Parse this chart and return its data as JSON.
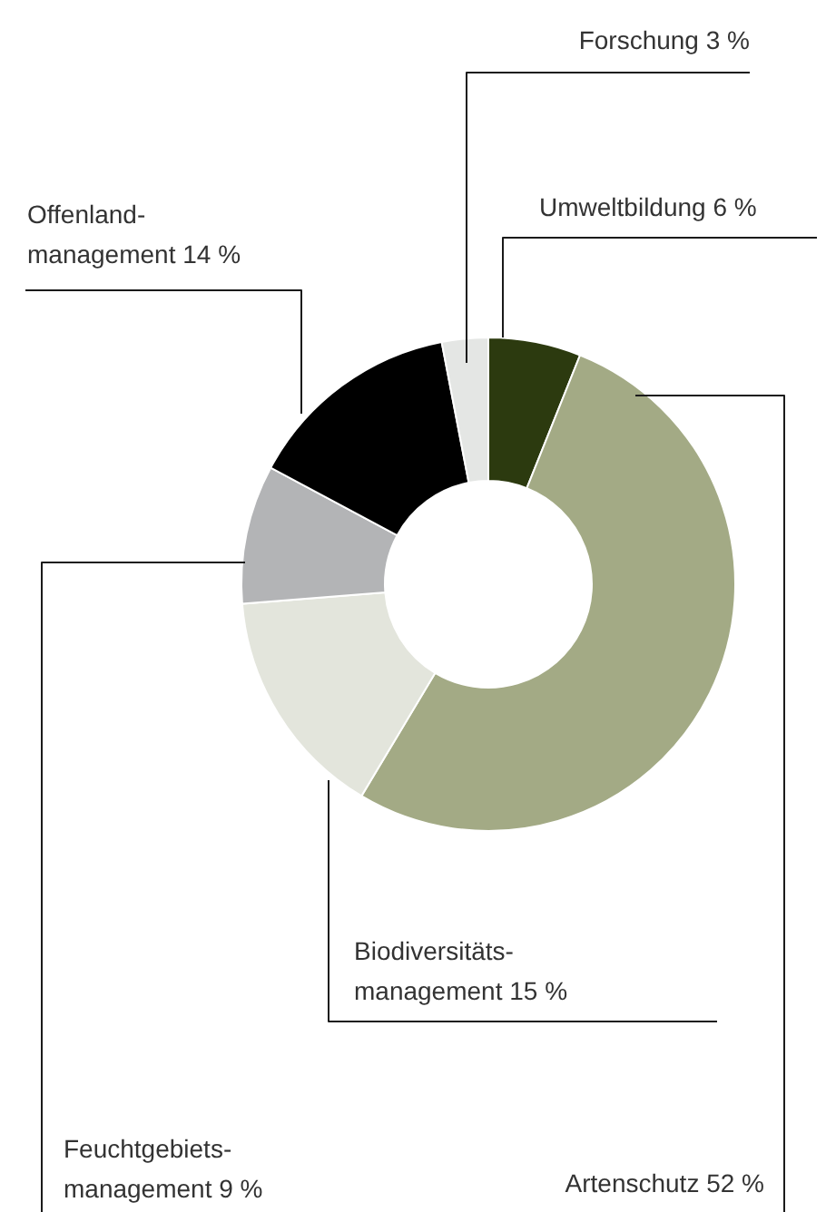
{
  "chart_data": {
    "type": "donut",
    "categories": [
      "Umweltbildung",
      "Artenschutz",
      "Biodiversitäts-\nmanagement",
      "Feuchtgebiets-\nmanagement",
      "Offenland-\nmanagement",
      "Forschung"
    ],
    "values": [
      6,
      52,
      15,
      9,
      14,
      3
    ],
    "value_labels": [
      "6 %",
      "52 %",
      "15 %",
      "9 %",
      "14 %",
      "3 %"
    ],
    "colors": [
      "#2c3a0f",
      "#a3aa85",
      "#e3e5dc",
      "#b3b4b6",
      "#000000",
      "#e4e6e4"
    ]
  }
}
